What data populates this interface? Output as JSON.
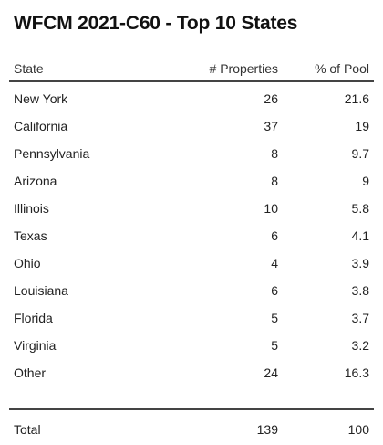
{
  "chart_data": {
    "type": "table",
    "title": "WFCM 2021-C60 - Top 10 States",
    "columns": [
      "State",
      "# Properties",
      "% of Pool"
    ],
    "rows": [
      {
        "state": "New York",
        "properties": 26,
        "pct": 21.6
      },
      {
        "state": "California",
        "properties": 37,
        "pct": 19
      },
      {
        "state": "Pennsylvania",
        "properties": 8,
        "pct": 9.7
      },
      {
        "state": "Arizona",
        "properties": 8,
        "pct": 9
      },
      {
        "state": "Illinois",
        "properties": 10,
        "pct": 5.8
      },
      {
        "state": "Texas",
        "properties": 6,
        "pct": 4.1
      },
      {
        "state": "Ohio",
        "properties": 4,
        "pct": 3.9
      },
      {
        "state": "Louisiana",
        "properties": 6,
        "pct": 3.8
      },
      {
        "state": "Florida",
        "properties": 5,
        "pct": 3.7
      },
      {
        "state": "Virginia",
        "properties": 5,
        "pct": 3.2
      },
      {
        "state": "Other",
        "properties": 24,
        "pct": 16.3
      }
    ],
    "total": {
      "label": "Total",
      "properties": 139,
      "pct": 100
    }
  }
}
